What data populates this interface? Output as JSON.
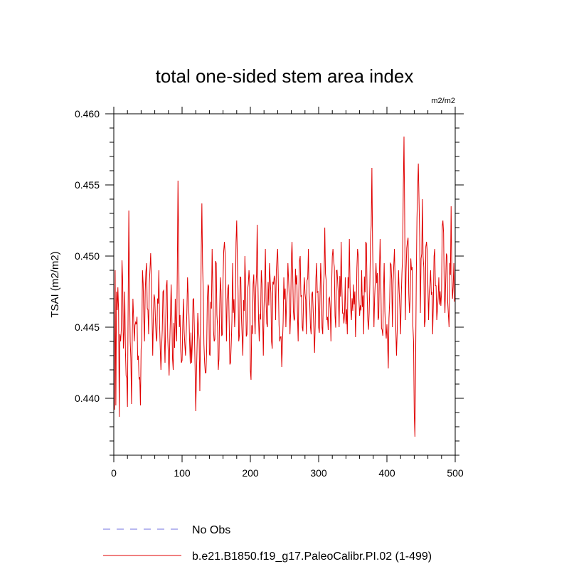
{
  "chart_data": {
    "type": "line",
    "title": "total one-sided stem area index",
    "units_label": "m2/m2",
    "ylabel": "TSAI  (m2/m2)",
    "xlabel": "",
    "xlim": [
      0,
      500
    ],
    "ylim": [
      0.436,
      0.46
    ],
    "x_ticks": [
      0,
      100,
      200,
      300,
      400,
      500
    ],
    "x_tick_labels": [
      "0",
      "100",
      "200",
      "300",
      "400",
      "500"
    ],
    "y_ticks": [
      0.44,
      0.445,
      0.45,
      0.455,
      0.46
    ],
    "y_tick_labels": [
      "0.440",
      "0.445",
      "0.450",
      "0.455",
      "0.460"
    ],
    "grid": false,
    "legend_position": "bottom-left",
    "series": [
      {
        "name": "No Obs",
        "color": "#7070e0",
        "style": "dashed",
        "values": []
      },
      {
        "name": "b.e21.B1850.f19_g17.PaleoCalibr.PI.02 (1-499)",
        "color": "#e00000",
        "style": "solid",
        "x_start": 1,
        "x_end": 499,
        "keypoints": [
          [
            1,
            0.4392
          ],
          [
            2,
            0.449
          ],
          [
            3,
            0.4395
          ],
          [
            4,
            0.4475
          ],
          [
            5,
            0.4462
          ],
          [
            6,
            0.4478
          ],
          [
            7,
            0.4462
          ],
          [
            8,
            0.4387
          ],
          [
            9,
            0.4445
          ],
          [
            10,
            0.444
          ],
          [
            12,
            0.4497
          ],
          [
            14,
            0.4435
          ],
          [
            16,
            0.4475
          ],
          [
            18,
            0.4416
          ],
          [
            20,
            0.4394
          ],
          [
            22,
            0.4532
          ],
          [
            24,
            0.444
          ],
          [
            26,
            0.4396
          ],
          [
            28,
            0.447
          ],
          [
            30,
            0.444
          ],
          [
            33,
            0.4452
          ],
          [
            36,
            0.443
          ],
          [
            39,
            0.4395
          ],
          [
            42,
            0.449
          ],
          [
            45,
            0.444
          ],
          [
            48,
            0.4495
          ],
          [
            51,
            0.4445
          ],
          [
            54,
            0.4502
          ],
          [
            57,
            0.443
          ],
          [
            60,
            0.447
          ],
          [
            63,
            0.444
          ],
          [
            66,
            0.449
          ],
          [
            69,
            0.442
          ],
          [
            72,
            0.4475
          ],
          [
            75,
            0.4425
          ],
          [
            78,
            0.4483
          ],
          [
            81,
            0.4416
          ],
          [
            84,
            0.448
          ],
          [
            87,
            0.442
          ],
          [
            90,
            0.447
          ],
          [
            92,
            0.444
          ],
          [
            94,
            0.4553
          ],
          [
            96,
            0.445
          ],
          [
            99,
            0.4425
          ],
          [
            102,
            0.447
          ],
          [
            105,
            0.443
          ],
          [
            108,
            0.4485
          ],
          [
            111,
            0.444
          ],
          [
            114,
            0.4425
          ],
          [
            117,
            0.447
          ],
          [
            120,
            0.4391
          ],
          [
            123,
            0.446
          ],
          [
            126,
            0.4405
          ],
          [
            129,
            0.4537
          ],
          [
            132,
            0.4438
          ],
          [
            135,
            0.4418
          ],
          [
            138,
            0.448
          ],
          [
            141,
            0.443
          ],
          [
            144,
            0.4505
          ],
          [
            147,
            0.444
          ],
          [
            150,
            0.4495
          ],
          [
            153,
            0.442
          ],
          [
            156,
            0.4485
          ],
          [
            159,
            0.4445
          ],
          [
            162,
            0.451
          ],
          [
            165,
            0.444
          ],
          [
            168,
            0.448
          ],
          [
            171,
            0.4425
          ],
          [
            174,
            0.4495
          ],
          [
            177,
            0.445
          ],
          [
            180,
            0.4525
          ],
          [
            183,
            0.444
          ],
          [
            186,
            0.4485
          ],
          [
            189,
            0.443
          ],
          [
            192,
            0.45
          ],
          [
            195,
            0.4445
          ],
          [
            198,
            0.449
          ],
          [
            201,
            0.4413
          ],
          [
            204,
            0.448
          ],
          [
            207,
            0.4445
          ],
          [
            210,
            0.4522
          ],
          [
            213,
            0.444
          ],
          [
            216,
            0.449
          ],
          [
            219,
            0.443
          ],
          [
            222,
            0.4505
          ],
          [
            225,
            0.445
          ],
          [
            228,
            0.4495
          ],
          [
            231,
            0.444
          ],
          [
            234,
            0.448
          ],
          [
            237,
            0.4455
          ],
          [
            240,
            0.4505
          ],
          [
            243,
            0.444
          ],
          [
            246,
            0.4422
          ],
          [
            249,
            0.4485
          ],
          [
            252,
            0.445
          ],
          [
            255,
            0.4495
          ],
          [
            258,
            0.4445
          ],
          [
            261,
            0.451
          ],
          [
            264,
            0.4455
          ],
          [
            267,
            0.448
          ],
          [
            270,
            0.444
          ],
          [
            273,
            0.45
          ],
          [
            276,
            0.445
          ],
          [
            279,
            0.4485
          ],
          [
            282,
            0.4445
          ],
          [
            285,
            0.4505
          ],
          [
            288,
            0.445
          ],
          [
            291,
            0.4475
          ],
          [
            294,
            0.4432
          ],
          [
            297,
            0.4495
          ],
          [
            300,
            0.445
          ],
          [
            303,
            0.4495
          ],
          [
            306,
            0.4445
          ],
          [
            309,
            0.452
          ],
          [
            312,
            0.4455
          ],
          [
            315,
            0.447
          ],
          [
            318,
            0.444
          ],
          [
            321,
            0.4505
          ],
          [
            324,
            0.4458
          ],
          [
            327,
            0.449
          ],
          [
            330,
            0.445
          ],
          [
            333,
            0.451
          ],
          [
            336,
            0.446
          ],
          [
            339,
            0.4485
          ],
          [
            342,
            0.4445
          ],
          [
            345,
            0.4512
          ],
          [
            348,
            0.4455
          ],
          [
            351,
            0.448
          ],
          [
            354,
            0.4443
          ],
          [
            357,
            0.4505
          ],
          [
            360,
            0.4458
          ],
          [
            363,
            0.449
          ],
          [
            366,
            0.4445
          ],
          [
            369,
            0.451
          ],
          [
            372,
            0.4455
          ],
          [
            375,
            0.448
          ],
          [
            378,
            0.4562
          ],
          [
            381,
            0.445
          ],
          [
            384,
            0.4495
          ],
          [
            387,
            0.4455
          ],
          [
            390,
            0.4512
          ],
          [
            393,
            0.4448
          ],
          [
            396,
            0.4495
          ],
          [
            399,
            0.4442
          ],
          [
            402,
            0.4421
          ],
          [
            405,
            0.4495
          ],
          [
            408,
            0.445
          ],
          [
            411,
            0.4505
          ],
          [
            414,
            0.443
          ],
          [
            417,
            0.449
          ],
          [
            420,
            0.4445
          ],
          [
            423,
            0.45
          ],
          [
            425,
            0.4584
          ],
          [
            427,
            0.4455
          ],
          [
            430,
            0.451
          ],
          [
            433,
            0.446
          ],
          [
            436,
            0.449
          ],
          [
            439,
            0.444
          ],
          [
            441,
            0.4373
          ],
          [
            443,
            0.4485
          ],
          [
            446,
            0.4565
          ],
          [
            449,
            0.446
          ],
          [
            452,
            0.454
          ],
          [
            455,
            0.445
          ],
          [
            458,
            0.451
          ],
          [
            461,
            0.4455
          ],
          [
            464,
            0.449
          ],
          [
            467,
            0.4445
          ],
          [
            470,
            0.4505
          ],
          [
            473,
            0.4455
          ],
          [
            476,
            0.4485
          ],
          [
            479,
            0.4465
          ],
          [
            482,
            0.4525
          ],
          [
            485,
            0.446
          ],
          [
            488,
            0.45
          ],
          [
            491,
            0.445
          ],
          [
            494,
            0.4535
          ],
          [
            496,
            0.447
          ],
          [
            498,
            0.4495
          ],
          [
            499,
            0.4468
          ]
        ]
      }
    ]
  }
}
